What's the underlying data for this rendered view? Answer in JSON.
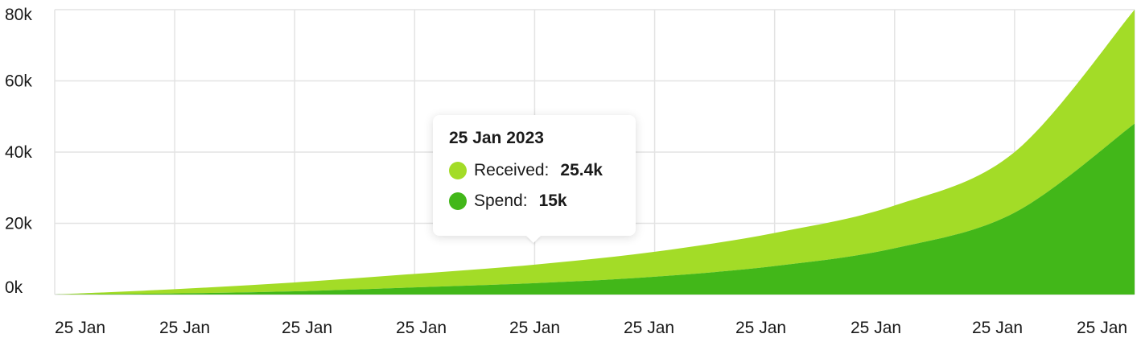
{
  "chart_data": {
    "type": "area",
    "stacked": true,
    "title": "",
    "xlabel": "",
    "ylabel": "",
    "ylim": [
      0,
      80000
    ],
    "y_ticks": [
      "0k",
      "20k",
      "40k",
      "60k",
      "80k"
    ],
    "y_tick_values": [
      0,
      20000,
      40000,
      60000,
      80000
    ],
    "categories": [
      "25 Jan",
      "25 Jan",
      "25 Jan",
      "25 Jan",
      "25 Jan",
      "25 Jan",
      "25 Jan",
      "25 Jan",
      "25 Jan",
      "25 Jan"
    ],
    "grid": true,
    "legend": "none",
    "series": [
      {
        "name": "Spend",
        "color": "#42b719",
        "values": [
          0,
          300,
          900,
          2000,
          3200,
          5000,
          8000,
          13000,
          23000,
          48000
        ]
      },
      {
        "name": "Received",
        "color": "#a3dc27",
        "values": [
          0,
          1200,
          2500,
          3800,
          5200,
          7000,
          9300,
          12000,
          17000,
          32000
        ]
      }
    ],
    "tooltip": {
      "title": "25 Jan 2023",
      "items": [
        {
          "label": "Received:",
          "value": "25.4k",
          "color": "#a3dc27"
        },
        {
          "label": "Spend:",
          "value": "15k",
          "color": "#42b719"
        }
      ]
    }
  }
}
